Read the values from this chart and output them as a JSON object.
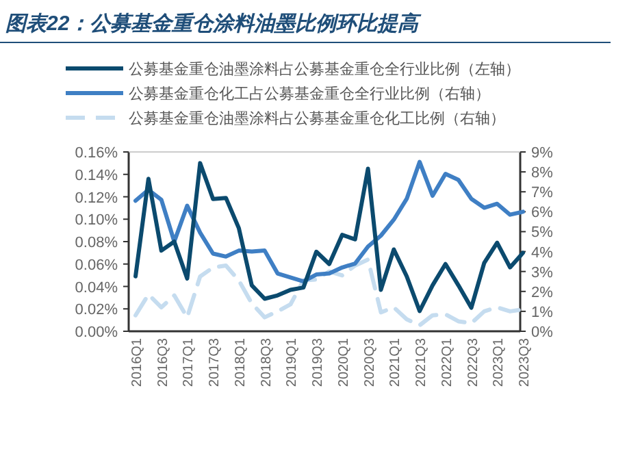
{
  "chart_data": {
    "type": "line",
    "title": "图表22：公募基金重仓涂料油墨比例环比提高",
    "categories": [
      "2016Q1",
      null,
      "2016Q3",
      null,
      "2017Q1",
      null,
      "2017Q3",
      null,
      "2018Q1",
      null,
      "2018Q3",
      null,
      "2019Q1",
      null,
      "2019Q3",
      null,
      "2020Q1",
      null,
      "2020Q3",
      null,
      "2021Q1",
      null,
      "2021Q3",
      null,
      "2022Q1",
      null,
      "2022Q3",
      null,
      "2023Q1",
      null,
      "2023Q3"
    ],
    "series": [
      {
        "name": "公募基金重仓油墨涂料占公募基金重仓全行业比例（左轴）",
        "color": "#0b4a6e",
        "axis": "y",
        "line_style": "solid",
        "values": [
          0.049,
          0.136,
          0.072,
          0.08,
          0.047,
          0.15,
          0.118,
          0.119,
          0.092,
          0.041,
          0.029,
          0.032,
          0.037,
          0.039,
          0.071,
          0.06,
          0.086,
          0.082,
          0.145,
          0.037,
          0.073,
          0.049,
          0.018,
          0.041,
          0.06,
          0.041,
          0.021,
          0.061,
          0.079,
          0.057,
          0.07
        ]
      },
      {
        "name": "公募基金重仓化工占公募基金重仓全行业比例（右轴）",
        "color": "#3f7fc4",
        "axis": "y2",
        "line_style": "solid",
        "values": [
          6.55,
          7.1,
          6.6,
          4.5,
          6.3,
          4.95,
          3.9,
          3.75,
          4.05,
          4.0,
          4.05,
          2.9,
          2.7,
          2.5,
          2.85,
          2.9,
          3.2,
          3.4,
          4.25,
          4.8,
          5.6,
          6.65,
          8.5,
          6.8,
          7.9,
          7.6,
          6.65,
          6.2,
          6.4,
          5.85,
          6.0
        ]
      },
      {
        "name": "公募基金重仓油墨涂料占公募基金重仓化工比例（右轴）",
        "color": "#c5dcef",
        "axis": "y2",
        "line_style": "dashed",
        "values": [
          0.8,
          1.85,
          1.2,
          1.8,
          0.7,
          2.75,
          3.2,
          3.3,
          2.55,
          1.4,
          0.7,
          1.0,
          1.35,
          2.55,
          2.6,
          3.0,
          2.8,
          3.3,
          3.6,
          0.95,
          1.2,
          0.6,
          0.3,
          0.8,
          0.85,
          0.5,
          0.4,
          1.0,
          1.2,
          1.0,
          1.1
        ]
      }
    ],
    "ylim": [
      0,
      0.16
    ],
    "yticks": [
      {
        "value": 0,
        "label": "0.00%"
      },
      {
        "value": 0.02,
        "label": "0.02%"
      },
      {
        "value": 0.04,
        "label": "0.04%"
      },
      {
        "value": 0.06,
        "label": "0.06%"
      },
      {
        "value": 0.08,
        "label": "0.08%"
      },
      {
        "value": 0.1,
        "label": "0.10%"
      },
      {
        "value": 0.12,
        "label": "0.12%"
      },
      {
        "value": 0.14,
        "label": "0.14%"
      },
      {
        "value": 0.16,
        "label": "0.16%"
      }
    ],
    "y2lim": [
      0,
      9
    ],
    "y2ticks": [
      {
        "value": 0,
        "label": "0%"
      },
      {
        "value": 1,
        "label": "1%"
      },
      {
        "value": 2,
        "label": "2%"
      },
      {
        "value": 3,
        "label": "3%"
      },
      {
        "value": 4,
        "label": "4%"
      },
      {
        "value": 5,
        "label": "5%"
      },
      {
        "value": 6,
        "label": "6%"
      },
      {
        "value": 7,
        "label": "7%"
      },
      {
        "value": 8,
        "label": "8%"
      },
      {
        "value": 9,
        "label": "9%"
      }
    ],
    "grid": false,
    "legend": "top"
  }
}
